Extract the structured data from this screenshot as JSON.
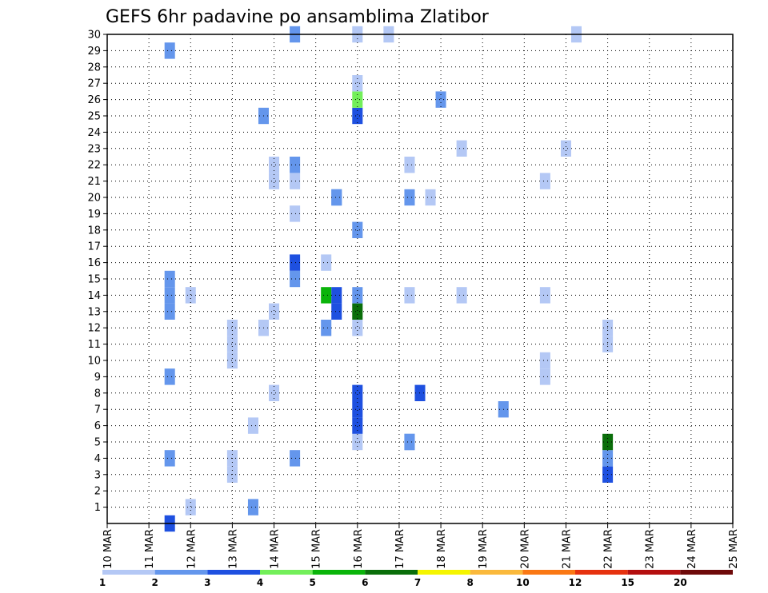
{
  "chart_data": {
    "type": "heatmap",
    "title": "GEFS 6hr padavine po ansamblima Zlatibor",
    "x_tick_labels": [
      "10 MAR",
      "11 MAR",
      "12 MAR",
      "13 MAR",
      "14 MAR",
      "15 MAR",
      "16 MAR",
      "17 MAR",
      "18 MAR",
      "19 MAR",
      "20 MAR",
      "21 MAR",
      "22 MAR",
      "23 MAR",
      "24 MAR",
      "25 MAR"
    ],
    "x_range_hours": [
      0,
      360
    ],
    "time_step_hours": 6,
    "y_tick_labels": [
      "1",
      "2",
      "3",
      "4",
      "5",
      "6",
      "7",
      "8",
      "9",
      "10",
      "11",
      "12",
      "13",
      "14",
      "15",
      "16",
      "17",
      "18",
      "19",
      "20",
      "21",
      "22",
      "23",
      "24",
      "25",
      "26",
      "27",
      "28",
      "29",
      "30"
    ],
    "y_range": [
      0,
      30
    ],
    "grid": "dotted",
    "legend_placement": "bottom",
    "legend_thresholds": [
      "1",
      "2",
      "3",
      "4",
      "5",
      "6",
      "7",
      "8",
      "10",
      "12",
      "15",
      "20"
    ],
    "legend_colors": [
      "#b4c8f5",
      "#6496ec",
      "#1e50e0",
      "#73ef5a",
      "#0ab40a",
      "#0a6e0a",
      "#f5f500",
      "#fab93c",
      "#fa7814",
      "#e6320f",
      "#b40f0f",
      "#6e0a0a"
    ],
    "cells": [
      {
        "t": 6,
        "m": 0,
        "c": 2
      },
      {
        "t": 6,
        "m": 4,
        "c": 1
      },
      {
        "t": 6,
        "m": 9,
        "c": 1
      },
      {
        "t": 6,
        "m": 13,
        "c": 1
      },
      {
        "t": 6,
        "m": 14,
        "c": 1
      },
      {
        "t": 6,
        "m": 15,
        "c": 1
      },
      {
        "t": 6,
        "m": 29,
        "c": 1
      },
      {
        "t": 8,
        "m": 14,
        "c": 0
      },
      {
        "t": 8,
        "m": 1,
        "c": 0
      },
      {
        "t": 12,
        "m": 3,
        "c": 0
      },
      {
        "t": 12,
        "m": 4,
        "c": 0
      },
      {
        "t": 12,
        "m": 10,
        "c": 0
      },
      {
        "t": 12,
        "m": 11,
        "c": 0
      },
      {
        "t": 12,
        "m": 12,
        "c": 0
      },
      {
        "t": 14,
        "m": 1,
        "c": 1
      },
      {
        "t": 14,
        "m": 6,
        "c": 0
      },
      {
        "t": 15,
        "m": 25,
        "c": 1
      },
      {
        "t": 15,
        "m": 12,
        "c": 0
      },
      {
        "t": 16,
        "m": 8,
        "c": 0
      },
      {
        "t": 16,
        "m": 13,
        "c": 0
      },
      {
        "t": 16,
        "m": 21,
        "c": 0
      },
      {
        "t": 16,
        "m": 22,
        "c": 0
      },
      {
        "t": 18,
        "m": 4,
        "c": 1
      },
      {
        "t": 18,
        "m": 15,
        "c": 1
      },
      {
        "t": 18,
        "m": 16,
        "c": 2
      },
      {
        "t": 18,
        "m": 19,
        "c": 0
      },
      {
        "t": 18,
        "m": 21,
        "c": 0
      },
      {
        "t": 18,
        "m": 22,
        "c": 1
      },
      {
        "t": 18,
        "m": 30,
        "c": 1
      },
      {
        "t": 21,
        "m": 14,
        "c": 4
      },
      {
        "t": 21,
        "m": 12,
        "c": 1
      },
      {
        "t": 21,
        "m": 16,
        "c": 0
      },
      {
        "t": 22,
        "m": 13,
        "c": 2
      },
      {
        "t": 22,
        "m": 14,
        "c": 2
      },
      {
        "t": 22,
        "m": 20,
        "c": 1
      },
      {
        "t": 22,
        "m": 20,
        "c": 1
      },
      {
        "t": 24,
        "m": 13,
        "c": 5
      },
      {
        "t": 24,
        "m": 5,
        "c": 0
      },
      {
        "t": 24,
        "m": 6,
        "c": 2
      },
      {
        "t": 24,
        "m": 7,
        "c": 2
      },
      {
        "t": 24,
        "m": 8,
        "c": 2
      },
      {
        "t": 24,
        "m": 12,
        "c": 0
      },
      {
        "t": 24,
        "m": 14,
        "c": 1
      },
      {
        "t": 24,
        "m": 18,
        "c": 1
      },
      {
        "t": 24,
        "m": 25,
        "c": 2
      },
      {
        "t": 24,
        "m": 26,
        "c": 3
      },
      {
        "t": 24,
        "m": 27,
        "c": 0
      },
      {
        "t": 24,
        "m": 30,
        "c": 0
      },
      {
        "t": 27,
        "m": 30,
        "c": 0
      },
      {
        "t": 29,
        "m": 5,
        "c": 1
      },
      {
        "t": 29,
        "m": 5,
        "c": 1
      },
      {
        "t": 29,
        "m": 14,
        "c": 0
      },
      {
        "t": 29,
        "m": 22,
        "c": 0
      },
      {
        "t": 29,
        "m": 20,
        "c": 1
      },
      {
        "t": 30,
        "m": 8,
        "c": 2
      },
      {
        "t": 31,
        "m": 20,
        "c": 0
      },
      {
        "t": 32,
        "m": 26,
        "c": 1
      },
      {
        "t": 34,
        "m": 14,
        "c": 0
      },
      {
        "t": 34,
        "m": 23,
        "c": 0
      },
      {
        "t": 38,
        "m": 7,
        "c": 1
      },
      {
        "t": 42,
        "m": 9,
        "c": 0
      },
      {
        "t": 42,
        "m": 10,
        "c": 0
      },
      {
        "t": 42,
        "m": 21,
        "c": 0
      },
      {
        "t": 42,
        "m": 14,
        "c": 0
      },
      {
        "t": 44,
        "m": 23,
        "c": 0
      },
      {
        "t": 45,
        "m": 30,
        "c": 0
      },
      {
        "t": 48,
        "m": 3,
        "c": 2
      },
      {
        "t": 48,
        "m": 4,
        "c": 1
      },
      {
        "t": 48,
        "m": 5,
        "c": 5
      },
      {
        "t": 48,
        "m": 11,
        "c": 0
      },
      {
        "t": 48,
        "m": 12,
        "c": 0
      }
    ]
  }
}
